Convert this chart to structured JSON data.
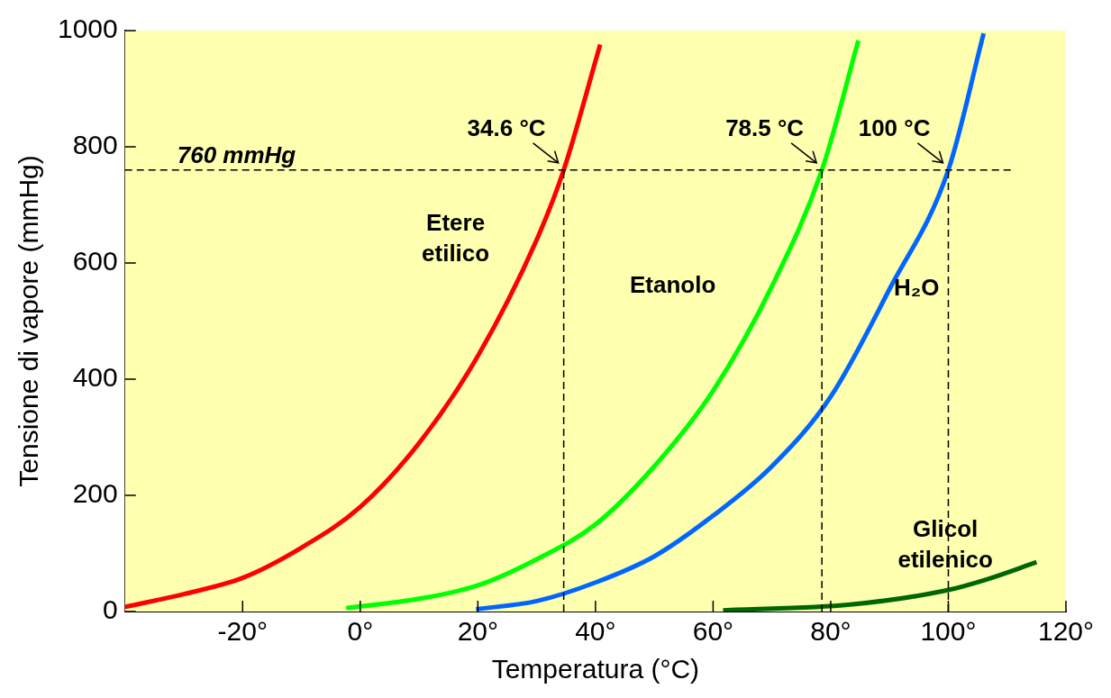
{
  "chart_data": {
    "type": "line",
    "xlabel": "Temperatura (°C)",
    "ylabel": "Tensione di vapore (mmHg)",
    "xlim": [
      -40,
      120
    ],
    "xticks": [
      {
        "value": -20,
        "label": "-20°"
      },
      {
        "value": 0,
        "label": "0°"
      },
      {
        "value": 20,
        "label": "20°"
      },
      {
        "value": 40,
        "label": "40°"
      },
      {
        "value": 60,
        "label": "60°"
      },
      {
        "value": 80,
        "label": "80°"
      },
      {
        "value": 100,
        "label": "100°"
      },
      {
        "value": 120,
        "label": "120°"
      }
    ],
    "ylim": [
      0,
      1000
    ],
    "yticks": [
      0,
      200,
      400,
      600,
      800,
      1000
    ],
    "legend": false,
    "marker": "none",
    "line_style": "solid",
    "series": [
      {
        "name": "Etere etilico",
        "color": "#ff0000",
        "x": [
          -40,
          -30,
          -20,
          -10,
          0,
          10,
          20,
          30,
          34.6,
          40.8
        ],
        "values": [
          8,
          30,
          58,
          110,
          180,
          290,
          440,
          640,
          760,
          976
        ]
      },
      {
        "name": "Etanolo",
        "color": "#00ff00",
        "x": [
          -2.4,
          10,
          20,
          30,
          40,
          50,
          60,
          70,
          78.5,
          84.7
        ],
        "values": [
          6,
          22,
          45,
          90,
          150,
          250,
          380,
          560,
          760,
          983
        ]
      },
      {
        "name": "H₂O",
        "color": "#0066ff",
        "x": [
          19.7,
          30,
          40,
          50,
          60,
          70,
          80,
          90,
          100,
          106
        ],
        "values": [
          4,
          18,
          50,
          95,
          165,
          250,
          370,
          555,
          760,
          995
        ]
      },
      {
        "name": "Glicol etilenico",
        "color": "#006600",
        "x": [
          61.7,
          83.3,
          99.5,
          106.4,
          115
        ],
        "values": [
          2,
          12,
          36,
          55,
          85
        ]
      }
    ],
    "ref_lines": [
      {
        "axis": "y",
        "value": 760,
        "label": "760 mmHg",
        "line_style": "dashed",
        "color": "#000000"
      },
      {
        "axis": "x",
        "value": 34.6,
        "label": "34.6 °C",
        "line_style": "dashed",
        "color": "#000000"
      },
      {
        "axis": "x",
        "value": 78.5,
        "label": "78.5 °C",
        "line_style": "dashed",
        "color": "#000000"
      },
      {
        "axis": "x",
        "value": 100,
        "label": "100 °C",
        "line_style": "dashed",
        "color": "#000000"
      }
    ]
  }
}
